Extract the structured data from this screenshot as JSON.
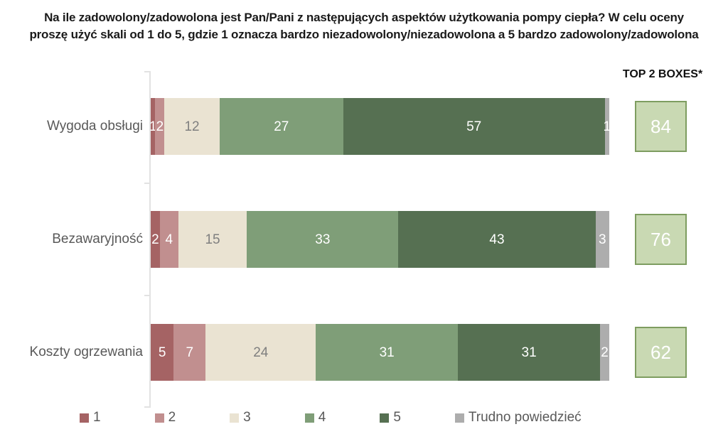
{
  "title": {
    "line1": "Na ile zadowolony/zadowolona jest Pan/Pani z następujących aspektów użytkowania pompy ciepła? W celu oceny",
    "line2": "proszę użyć skali od 1 do 5, gdzie 1 oznacza bardzo niezadowolony/niezadowolona a 5 bardzo zadowolony/zadowolona"
  },
  "top2_header": "TOP 2 BOXES*",
  "chart_data": {
    "type": "bar",
    "stacked": true,
    "orientation": "horizontal",
    "xlim": [
      0,
      100
    ],
    "unit": "percent",
    "legend_position": "bottom",
    "categories": [
      "Wygoda obsługi",
      "Bezawaryjność",
      "Koszty ogrzewania"
    ],
    "series": [
      {
        "name": "1",
        "color": "#a56364",
        "label_color": "#ffffff",
        "values": [
          1,
          2,
          5
        ]
      },
      {
        "name": "2",
        "color": "#c18f8f",
        "label_color": "#ffffff",
        "values": [
          2,
          4,
          7
        ]
      },
      {
        "name": "3",
        "color": "#eae3d2",
        "label_color": "#7f7f7f",
        "values": [
          12,
          15,
          24
        ]
      },
      {
        "name": "4",
        "color": "#7f9e78",
        "label_color": "#ffffff",
        "values": [
          27,
          33,
          31
        ]
      },
      {
        "name": "5",
        "color": "#567052",
        "label_color": "#ffffff",
        "values": [
          57,
          43,
          31
        ]
      },
      {
        "name": "Trudno powiedzieć",
        "color": "#adadad",
        "label_color": "#ffffff",
        "values": [
          1,
          3,
          2
        ]
      }
    ],
    "top2_boxes": [
      84,
      76,
      62
    ]
  },
  "colors": {
    "top2_box_fill": "#c9d9b3",
    "top2_box_border": "#7e9d60",
    "axis": "#e2e2e2",
    "label_text": "#595959",
    "title_text": "#1a1a1a"
  }
}
